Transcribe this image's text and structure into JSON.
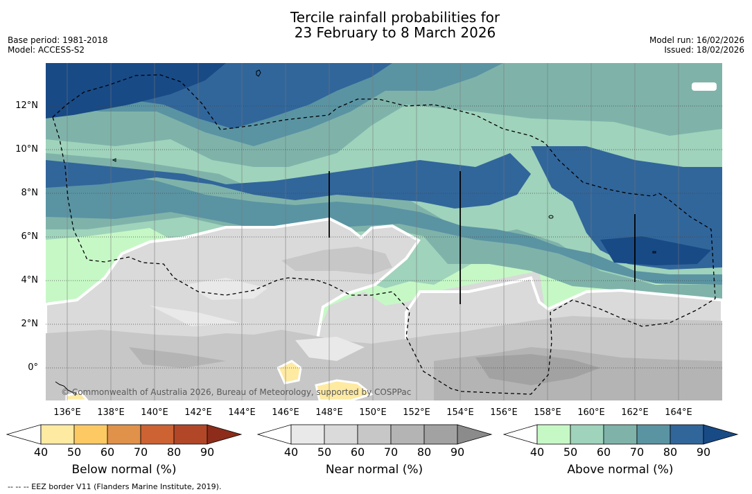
{
  "title": {
    "line1": "Tercile rainfall probabilities for",
    "line2": "23 February to 8 March 2026"
  },
  "meta": {
    "base_period": "Base period: 1981-2018",
    "model": "Model: ACCESS-S2",
    "model_run": "Model run: 16/02/2026",
    "issued": "Issued: 18/02/2026"
  },
  "map": {
    "copyright": "© Commonwealth of Australia 2026, Bureau of Meteorology, supported by COSPPac",
    "lat_labels": [
      "12°N",
      "10°N",
      "8°N",
      "6°N",
      "4°N",
      "2°N",
      "0°"
    ],
    "lon_labels": [
      "136°E",
      "138°E",
      "140°E",
      "142°E",
      "144°E",
      "146°E",
      "148°E",
      "150°E",
      "152°E",
      "154°E",
      "156°E",
      "158°E",
      "160°E",
      "162°E",
      "164°E"
    ],
    "colors": {
      "above": [
        "#c6f8c6",
        "#9fd3bb",
        "#7fb3aa",
        "#5a94a3",
        "#31669b",
        "#184a86"
      ],
      "near": [
        "#e9e9e9",
        "#dadada",
        "#c7c7c7",
        "#b4b4b4",
        "#a2a2a2",
        "#8b8b8b"
      ],
      "below": [
        "#ffeaa2",
        "#fdc963",
        "#e0914a",
        "#cd6233",
        "#b14727",
        "#8d2c1a"
      ]
    }
  },
  "colorbars": [
    {
      "title": "Below normal (%)",
      "ticks": [
        "40",
        "50",
        "60",
        "70",
        "80",
        "90"
      ]
    },
    {
      "title": "Near normal (%)",
      "ticks": [
        "40",
        "50",
        "60",
        "70",
        "80",
        "90"
      ]
    },
    {
      "title": "Above normal (%)",
      "ticks": [
        "40",
        "50",
        "60",
        "70",
        "80",
        "90"
      ]
    }
  ],
  "footnote": "--  --  -- EEZ border V11 (Flanders Marine Institute, 2019)."
}
